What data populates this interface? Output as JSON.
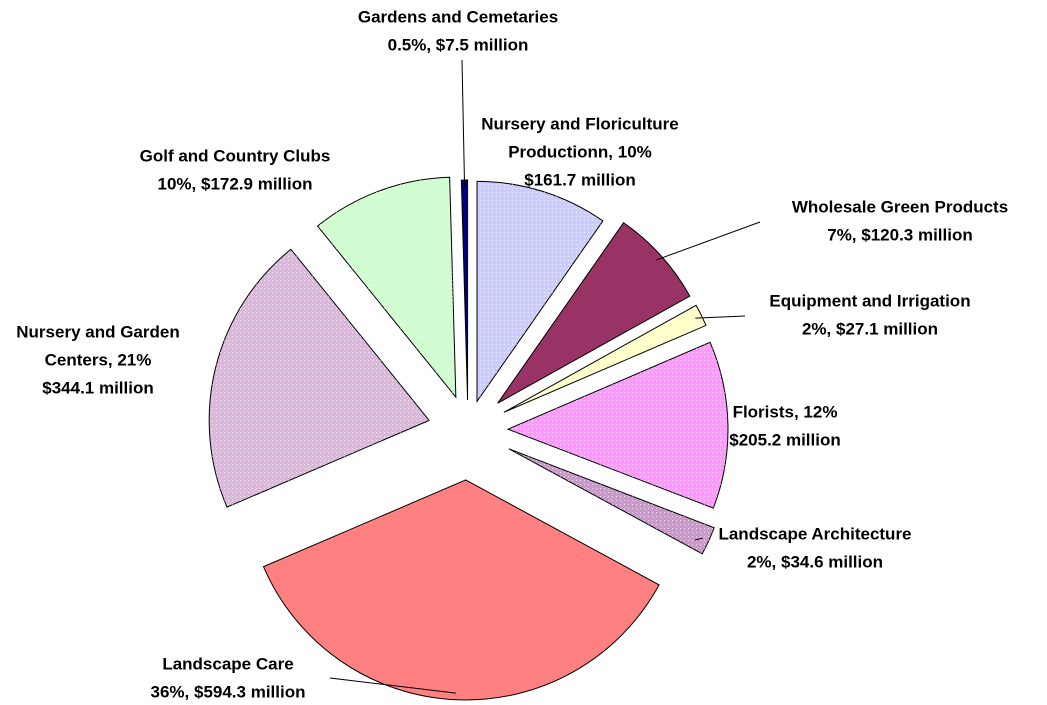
{
  "chart_data": {
    "type": "pie",
    "labels": [
      [
        "Nursery and Floriculture",
        "Productionn, 10%",
        "$161.7 million"
      ],
      [
        "Wholesale Green Products",
        "7%, $120.3 million"
      ],
      [
        "Equipment and Irrigation",
        "2%, $27.1 million"
      ],
      [
        "Florists, 12%",
        "$205.2 million"
      ],
      [
        "Landscape Architecture",
        "2%, $34.6 million"
      ],
      [
        "Landscape Care",
        "36%, $594.3 million"
      ],
      [
        "Nursery and Garden",
        "Centers, 21%",
        "$344.1 million"
      ],
      [
        "Golf and Country Clubs",
        "10%, $172.9 million"
      ],
      [
        "Gardens and Cemetaries",
        "0.5%, $7.5 million"
      ]
    ],
    "values": [
      161.7,
      120.3,
      27.1,
      205.2,
      34.6,
      594.3,
      344.1,
      172.9,
      7.5
    ],
    "colors": [
      "#ccccff",
      "#993366",
      "#ffffcc",
      "#ff99ff",
      "#cc99cc",
      "#ff8080",
      "#dcb8dc",
      "#ccffcc",
      "#000080"
    ]
  }
}
